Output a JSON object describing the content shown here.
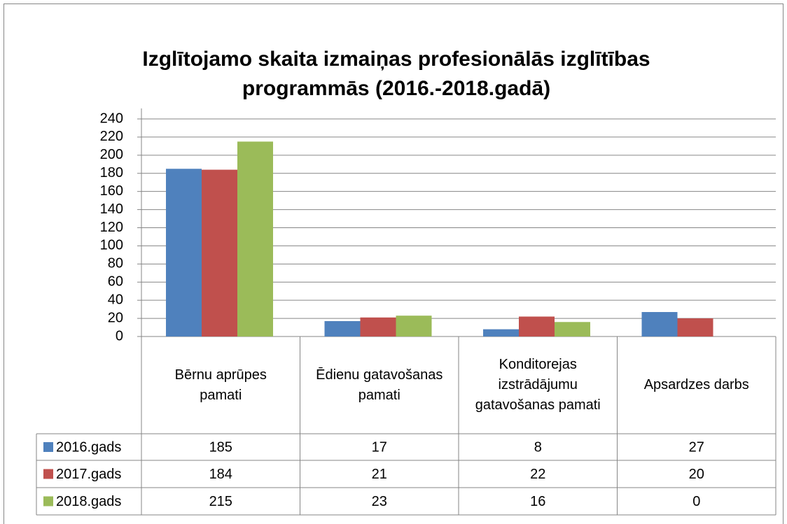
{
  "chart_data": {
    "type": "bar",
    "title": [
      "Izglītojamo skaita izmaiņas profesionālās izglītības",
      "programmās (2016.-2018.gadā)"
    ],
    "categories": [
      "Bērnu aprūpes pamati",
      "Ēdienu gatavošanas pamati",
      "Konditorejas izstrādājumu gatavošanas pamati",
      "Apsardzes darbs"
    ],
    "series": [
      {
        "name": "2016.gads",
        "color": "#4f81bd",
        "values": [
          185,
          17,
          8,
          27
        ]
      },
      {
        "name": "2017.gads",
        "color": "#c0504d",
        "values": [
          184,
          21,
          22,
          20
        ]
      },
      {
        "name": "2018.gads",
        "color": "#9bbb59",
        "values": [
          215,
          23,
          16,
          0
        ]
      }
    ],
    "ylim": [
      0,
      240
    ],
    "yticks": [
      0,
      20,
      40,
      60,
      80,
      100,
      120,
      140,
      160,
      180,
      200,
      220,
      240
    ],
    "grid": true,
    "data_table": true
  }
}
